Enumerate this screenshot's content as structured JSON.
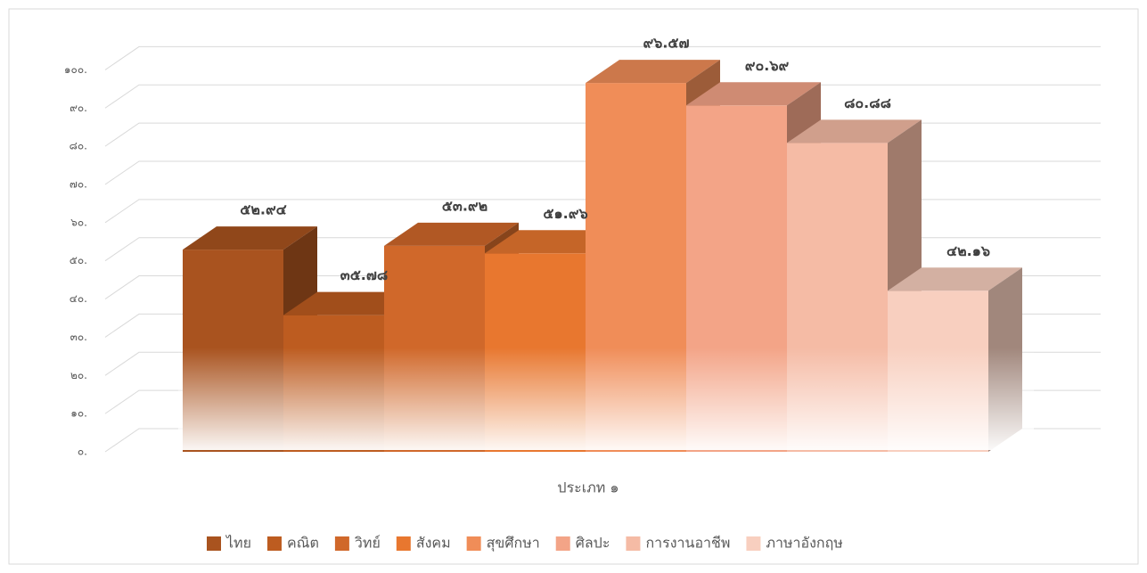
{
  "chart_data": {
    "type": "bar3d",
    "categories": [
      "ประเภท ๑"
    ],
    "series": [
      {
        "name": "ไทย",
        "color": "#a9531f",
        "values": [
          52.94
        ],
        "value_labels": [
          "๕๒.๙๔"
        ]
      },
      {
        "name": "คณิต",
        "color": "#bd5c20",
        "values": [
          35.78
        ],
        "value_labels": [
          "๓๕.๗๘"
        ]
      },
      {
        "name": "วิทย์",
        "color": "#d0682a",
        "values": [
          53.92
        ],
        "value_labels": [
          "๕๓.๙๒"
        ]
      },
      {
        "name": "สังคม",
        "color": "#e8772f",
        "values": [
          51.96
        ],
        "value_labels": [
          "๕๑.๙๖"
        ]
      },
      {
        "name": "สุขศึกษา",
        "color": "#f08d58",
        "values": [
          96.57
        ],
        "value_labels": [
          "๙๖.๕๗"
        ]
      },
      {
        "name": "ศิลปะ",
        "color": "#f3a487",
        "values": [
          90.69
        ],
        "value_labels": [
          "๙๐.๖๙"
        ]
      },
      {
        "name": "การงานอาชีพ",
        "color": "#f5bba5",
        "values": [
          80.88
        ],
        "value_labels": [
          "๘๐.๘๘"
        ]
      },
      {
        "name": "ภาษาอังกฤษ",
        "color": "#f8cfbf",
        "values": [
          42.16
        ],
        "value_labels": [
          "๔๒.๑๖"
        ]
      }
    ],
    "ylim": [
      0,
      100
    ],
    "yticks": [
      {
        "value": 0,
        "label": "๐."
      },
      {
        "value": 10,
        "label": "๑๐."
      },
      {
        "value": 20,
        "label": "๒๐."
      },
      {
        "value": 30,
        "label": "๓๐."
      },
      {
        "value": 40,
        "label": "๔๐."
      },
      {
        "value": 50,
        "label": "๕๐."
      },
      {
        "value": 60,
        "label": "๖๐."
      },
      {
        "value": 70,
        "label": "๗๐."
      },
      {
        "value": 80,
        "label": "๘๐."
      },
      {
        "value": 90,
        "label": "๙๐."
      },
      {
        "value": 100,
        "label": "๑๐๐."
      }
    ],
    "grid": true,
    "legend": "bottom"
  }
}
